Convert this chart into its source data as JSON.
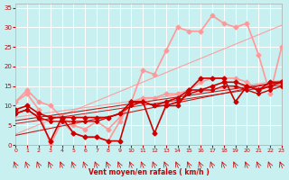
{
  "background_color": "#c8f0f0",
  "grid_color": "#ffffff",
  "xlabel": "Vent moyen/en rafales ( km/h )",
  "xlabel_color": "#cc0000",
  "tick_color": "#cc0000",
  "xlim": [
    0,
    23
  ],
  "ylim": [
    0,
    36
  ],
  "yticks": [
    0,
    5,
    10,
    15,
    20,
    25,
    30,
    35
  ],
  "xticks": [
    0,
    1,
    2,
    3,
    4,
    5,
    6,
    7,
    8,
    9,
    10,
    11,
    12,
    13,
    14,
    15,
    16,
    17,
    18,
    19,
    20,
    21,
    22,
    23
  ],
  "lines": [
    {
      "x": [
        0,
        1,
        2,
        3,
        4,
        5,
        6,
        7,
        8,
        9,
        10,
        11,
        12,
        13,
        14,
        15,
        16,
        17,
        18,
        19,
        20,
        21,
        22,
        23
      ],
      "y": [
        8,
        9,
        7,
        1,
        7,
        3,
        2,
        2,
        1,
        1,
        11,
        11,
        3,
        10,
        10,
        14,
        17,
        17,
        17,
        11,
        15,
        14,
        16,
        16
      ],
      "color": "#cc0000",
      "lw": 1.2,
      "marker": "D",
      "ms": 2.5,
      "zorder": 5,
      "linear": false
    },
    {
      "x": [
        0,
        1,
        2,
        3,
        4,
        5,
        6,
        7,
        8,
        9,
        10,
        11,
        12,
        13,
        14,
        15,
        16,
        17,
        18,
        19,
        20,
        21,
        22,
        23
      ],
      "y": [
        8,
        9,
        7,
        1,
        7,
        3,
        2,
        2,
        1,
        1,
        11,
        11,
        3,
        10,
        10,
        14,
        17,
        17,
        17,
        11,
        15,
        14,
        16,
        16
      ],
      "color": "#cc0000",
      "lw": 0.8,
      "marker": null,
      "ms": 0,
      "zorder": 4,
      "linear": true
    },
    {
      "x": [
        0,
        1,
        2,
        3,
        4,
        5,
        6,
        7,
        8,
        9,
        10,
        11,
        12,
        13,
        14,
        15,
        16,
        17,
        18,
        19,
        20,
        21,
        22,
        23
      ],
      "y": [
        9,
        10,
        8,
        7,
        7,
        7,
        7,
        7,
        7,
        8,
        11,
        11,
        10,
        11,
        12,
        14,
        14,
        15,
        16,
        16,
        15,
        14,
        15,
        16
      ],
      "color": "#cc0000",
      "lw": 1.2,
      "marker": "D",
      "ms": 2.5,
      "zorder": 5,
      "linear": false
    },
    {
      "x": [
        0,
        1,
        2,
        3,
        4,
        5,
        6,
        7,
        8,
        9,
        10,
        11,
        12,
        13,
        14,
        15,
        16,
        17,
        18,
        19,
        20,
        21,
        22,
        23
      ],
      "y": [
        9,
        10,
        8,
        7,
        7,
        7,
        7,
        7,
        7,
        8,
        11,
        11,
        10,
        11,
        12,
        14,
        14,
        15,
        16,
        16,
        15,
        14,
        15,
        16
      ],
      "color": "#cc0000",
      "lw": 0.8,
      "marker": null,
      "ms": 0,
      "zorder": 4,
      "linear": true
    },
    {
      "x": [
        0,
        1,
        2,
        3,
        4,
        5,
        6,
        7,
        8,
        9,
        10,
        11,
        12,
        13,
        14,
        15,
        16,
        17,
        18,
        19,
        20,
        21,
        22,
        23
      ],
      "y": [
        8,
        9,
        7,
        6,
        6,
        6,
        6,
        6,
        7,
        8,
        10,
        11,
        10,
        10,
        11,
        13,
        14,
        14,
        15,
        15,
        14,
        13,
        14,
        15
      ],
      "color": "#cc0000",
      "lw": 1.0,
      "marker": "D",
      "ms": 2.0,
      "zorder": 5,
      "linear": false
    },
    {
      "x": [
        0,
        1,
        2,
        3,
        4,
        5,
        6,
        7,
        8,
        9,
        10,
        11,
        12,
        13,
        14,
        15,
        16,
        17,
        18,
        19,
        20,
        21,
        22,
        23
      ],
      "y": [
        8,
        9,
        7,
        6,
        6,
        6,
        6,
        6,
        7,
        8,
        10,
        11,
        10,
        10,
        11,
        13,
        14,
        14,
        15,
        15,
        14,
        13,
        14,
        15
      ],
      "color": "#cc0000",
      "lw": 0.7,
      "marker": null,
      "ms": 0,
      "zorder": 4,
      "linear": true
    },
    {
      "x": [
        0,
        1,
        2,
        3,
        4,
        5,
        6,
        7,
        8,
        9,
        10,
        11,
        12,
        13,
        14,
        15,
        16,
        17,
        18,
        19,
        20,
        21,
        22,
        23
      ],
      "y": [
        11,
        14,
        11,
        10,
        7,
        5,
        4,
        6,
        4,
        7,
        11,
        12,
        12,
        13,
        13,
        14,
        16,
        17,
        17,
        17,
        16,
        14,
        15,
        16
      ],
      "color": "#ff9999",
      "lw": 1.2,
      "marker": "D",
      "ms": 2.5,
      "zorder": 3,
      "linear": false
    },
    {
      "x": [
        0,
        1,
        2,
        3,
        4,
        5,
        6,
        7,
        8,
        9,
        10,
        11,
        12,
        13,
        14,
        15,
        16,
        17,
        18,
        19,
        20,
        21,
        22,
        23
      ],
      "y": [
        11,
        14,
        11,
        10,
        7,
        5,
        4,
        6,
        4,
        7,
        11,
        12,
        12,
        13,
        13,
        14,
        16,
        17,
        17,
        17,
        16,
        14,
        15,
        16
      ],
      "color": "#ff9999",
      "lw": 0.8,
      "marker": null,
      "ms": 0,
      "zorder": 2,
      "linear": true
    },
    {
      "x": [
        0,
        1,
        2,
        3,
        4,
        5,
        6,
        7,
        8,
        9,
        10,
        11,
        12,
        13,
        14,
        15,
        16,
        17,
        18,
        19,
        20,
        21,
        22,
        23
      ],
      "y": [
        11,
        13,
        9,
        0,
        6,
        3,
        2,
        2,
        1,
        6,
        11,
        19,
        18,
        24,
        30,
        29,
        29,
        33,
        31,
        30,
        31,
        23,
        13,
        25
      ],
      "color": "#ff9999",
      "lw": 1.2,
      "marker": "D",
      "ms": 2.5,
      "zorder": 3,
      "linear": false
    },
    {
      "x": [
        0,
        1,
        2,
        3,
        4,
        5,
        6,
        7,
        8,
        9,
        10,
        11,
        12,
        13,
        14,
        15,
        16,
        17,
        18,
        19,
        20,
        21,
        22,
        23
      ],
      "y": [
        11,
        13,
        9,
        0,
        6,
        3,
        2,
        2,
        1,
        6,
        11,
        19,
        18,
        24,
        30,
        29,
        29,
        33,
        31,
        30,
        31,
        23,
        13,
        25
      ],
      "color": "#ff9999",
      "lw": 0.8,
      "marker": null,
      "ms": 0,
      "zorder": 2,
      "linear": true
    }
  ],
  "arrows_x": [
    0,
    1,
    2,
    3,
    4,
    5,
    6,
    7,
    8,
    9,
    10,
    11,
    12,
    13,
    14,
    15,
    16,
    17,
    18,
    19,
    20,
    21,
    22,
    23
  ],
  "arrow_color": "#cc0000"
}
